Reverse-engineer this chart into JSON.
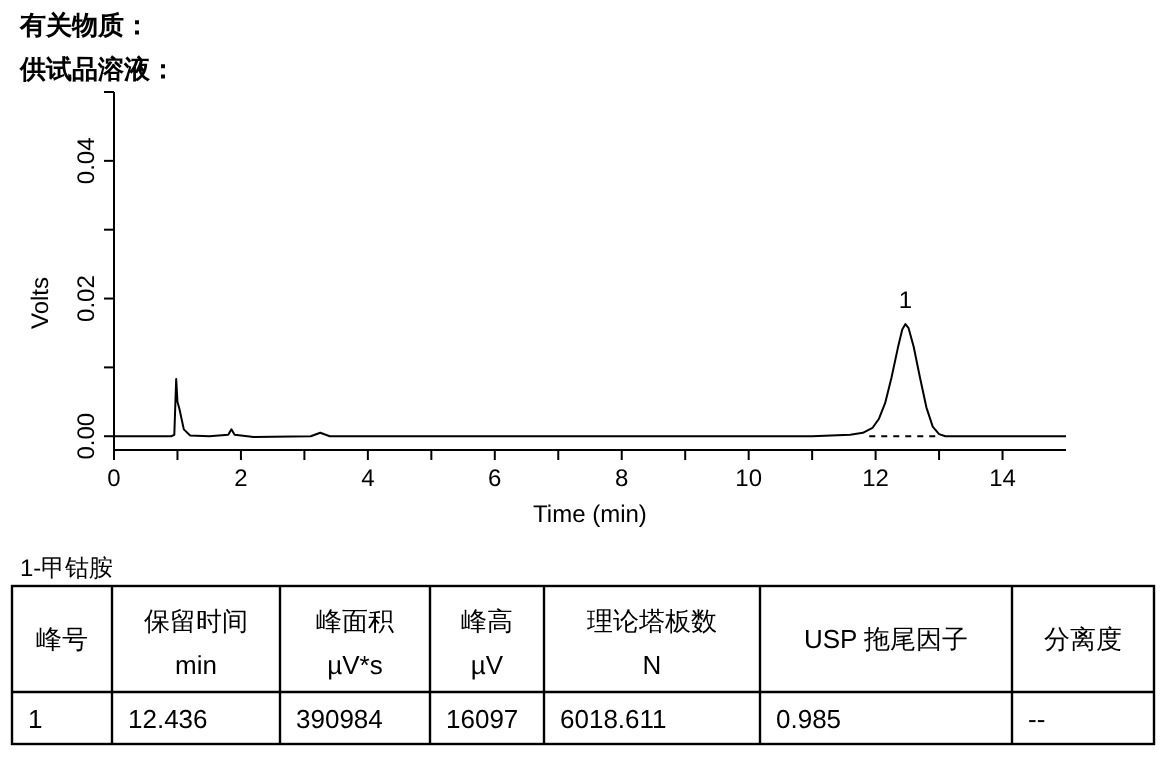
{
  "chart_data": {
    "type": "line",
    "title": "有关物质：",
    "subtitle": "供试品溶液：",
    "xlabel": "Time (min)",
    "ylabel": "Volts",
    "xlim": [
      0,
      15
    ],
    "ylim": [
      -0.002,
      0.05
    ],
    "xticks": [
      0,
      {
        "value": 1,
        "label": null
      },
      2,
      {
        "value": 3,
        "label": null
      },
      4,
      {
        "value": 5,
        "label": null
      },
      6,
      {
        "value": 7,
        "label": null
      },
      8,
      {
        "value": 9,
        "label": null
      },
      10,
      {
        "value": 11,
        "label": null
      },
      12,
      {
        "value": 13,
        "label": null
      },
      14
    ],
    "yticks": [
      {
        "value": 0,
        "label": "0.00"
      },
      {
        "value": 0.01,
        "label": null
      },
      {
        "value": 0.02,
        "label": "0.02"
      },
      {
        "value": 0.03,
        "label": null
      },
      {
        "value": 0.04,
        "label": "0.04"
      },
      {
        "value": 0.05,
        "label": null
      }
    ],
    "grid": false,
    "marker": "none",
    "series": [
      {
        "color": "#000000",
        "line_style": "solid",
        "x": [
          0,
          0.5,
          0.9,
          0.95,
          0.98,
          1.0,
          1.03,
          1.1,
          1.2,
          1.5,
          1.8,
          1.85,
          1.9,
          2.2,
          3.1,
          3.25,
          3.4,
          4.2,
          6,
          8,
          10,
          10.6,
          11,
          11.6,
          11.8,
          11.95,
          12.05,
          12.15,
          12.25,
          12.35,
          12.42,
          12.47,
          12.52,
          12.6,
          12.7,
          12.8,
          12.9,
          13.0,
          13.1,
          14,
          15
        ],
        "values": [
          0,
          0,
          0,
          0.0002,
          0.0083,
          0.005,
          0.004,
          0.001,
          0.0001,
          0,
          0.0002,
          0.001,
          0.0002,
          -0.0001,
          0,
          0.0005,
          0,
          0,
          0,
          0,
          0,
          0,
          0,
          0.0002,
          0.0005,
          0.0012,
          0.0025,
          0.0048,
          0.0085,
          0.0128,
          0.0155,
          0.0163,
          0.0157,
          0.013,
          0.0085,
          0.0042,
          0.0014,
          0.0003,
          0,
          0,
          0
        ]
      },
      {
        "color": "#000000",
        "line_style": "dashed",
        "x": [
          11.9,
          13.0
        ],
        "values": [
          0,
          0
        ]
      }
    ],
    "annotations": [
      {
        "text": "1",
        "x": 12.47,
        "y": 0.0163
      },
      "1-甲钴胺",
      "峰号",
      "保留时间\nmin",
      "峰面积\nµV*s",
      "峰高\nµV",
      "理论塔板数\nN",
      "USP 拖尾因子",
      "分离度",
      "1",
      "12.436",
      "390984",
      "16097",
      "6018.611",
      "0.985",
      "--"
    ]
  }
}
